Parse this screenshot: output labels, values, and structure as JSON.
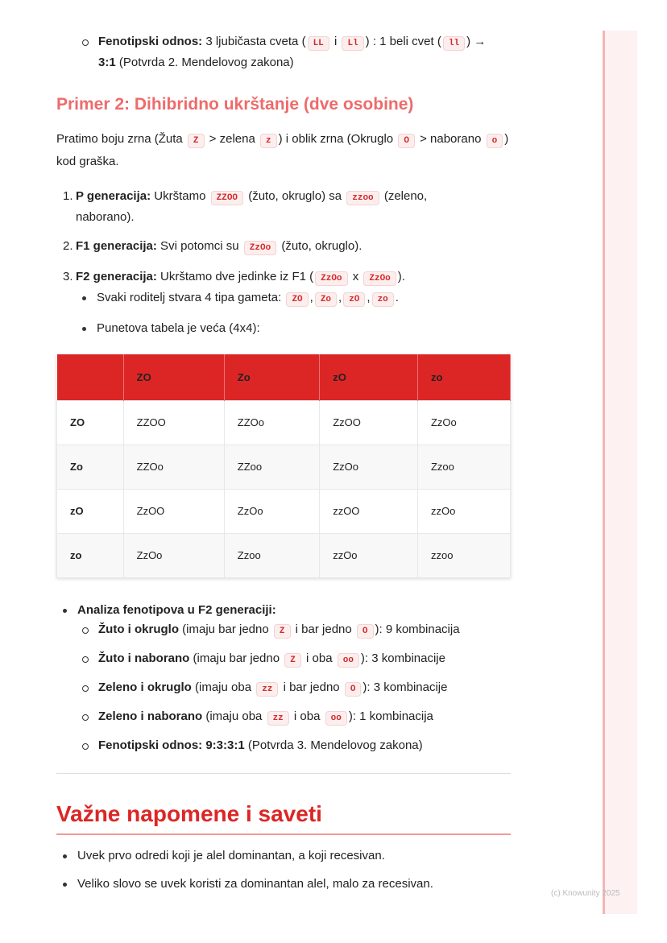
{
  "top": {
    "label": "Fenotipski odnos:",
    "t1": " 3 ljubičasta cveta (",
    "c1": "LL",
    "t2": " i ",
    "c2": "Ll",
    "t3": ") : 1 beli cvet (",
    "c3": "ll",
    "t4": ") →",
    "bold2": "3:1",
    "t5": " (Potvrda 2. Mendelovog zakona)"
  },
  "example2": {
    "title": "Primer 2: Dihibridno ukrštanje (dve osobine)",
    "intro": {
      "t1": "Pratimo boju zrna (Žuta ",
      "c1": "Z",
      "t2": " > zelena ",
      "c2": "z",
      "t3": ") i oblik zrna (Okruglo ",
      "c3": "O",
      "t4": " > naborano ",
      "c4": "o",
      "t5": ") kod graška."
    },
    "steps": [
      {
        "n": "1.",
        "label": "P generacija:",
        "t1": " Ukrštamo ",
        "c1": "ZZOO",
        "t2": " (žuto, okruglo) sa ",
        "c2": "zzoo",
        "t3": " (zeleno, naborano)."
      },
      {
        "n": "2.",
        "label": "F1 generacija:",
        "t1": " Svi potomci su ",
        "c1": "ZzOo",
        "t2": " (žuto, okruglo)."
      },
      {
        "n": "3.",
        "label": "F2 generacija:",
        "t1": " Ukrštamo dve jedinke iz F1 (",
        "c1": "ZzOo",
        "t2": " x ",
        "c2": "ZzOo",
        "t3": ")."
      }
    ],
    "gametes": {
      "t": "Svaki roditelj stvara 4 tipa gameta: ",
      "items": [
        "ZO",
        "Zo",
        "zO",
        "zo"
      ]
    },
    "punnett_note": "Punetova tabela je veća (4x4):",
    "table": {
      "header": [
        "",
        "ZO",
        "Zo",
        "zO",
        "zo"
      ],
      "rows": [
        [
          "ZO",
          "ZZOO",
          "ZZOo",
          "ZzOO",
          "ZzOo"
        ],
        [
          "Zo",
          "ZZOo",
          "ZZoo",
          "ZzOo",
          "Zzoo"
        ],
        [
          "zO",
          "ZzOO",
          "ZzOo",
          "zzOO",
          "zzOo"
        ],
        [
          "zo",
          "ZzOo",
          "Zzoo",
          "zzOo",
          "zzoo"
        ]
      ]
    },
    "analysis": {
      "title": "Analiza fenotipova u F2 generaciji:",
      "items": [
        {
          "b": "Žuto i okruglo",
          "t1": " (imaju bar jedno ",
          "c1": "Z",
          "t2": " i bar jedno ",
          "c2": "O",
          "t3": "): 9 kombinacija"
        },
        {
          "b": "Žuto i naborano",
          "t1": " (imaju bar jedno ",
          "c1": "Z",
          "t2": " i oba ",
          "c2": "oo",
          "t3": "): 3 kombinacije"
        },
        {
          "b": "Zeleno i okruglo",
          "t1": " (imaju oba ",
          "c1": "zz",
          "t2": " i bar jedno ",
          "c2": "O",
          "t3": "): 3 kombinacije"
        },
        {
          "b": "Zeleno i naborano",
          "t1": " (imaju oba ",
          "c1": "zz",
          "t2": " i oba ",
          "c2": "oo",
          "t3": "): 1 kombinacija"
        }
      ],
      "ratio": {
        "b": "Fenotipski odnos: 9:3:3:1",
        "t": " (Potvrda 3. Mendelovog zakona)"
      }
    }
  },
  "notes": {
    "title": "Važne napomene i saveti",
    "items": [
      "Uvek prvo odredi koji je alel dominantan, a koji recesivan.",
      "Veliko slovo se uvek koristi za dominantan alel, malo za recesivan."
    ]
  },
  "footer": "(c) Knowunity 2025"
}
